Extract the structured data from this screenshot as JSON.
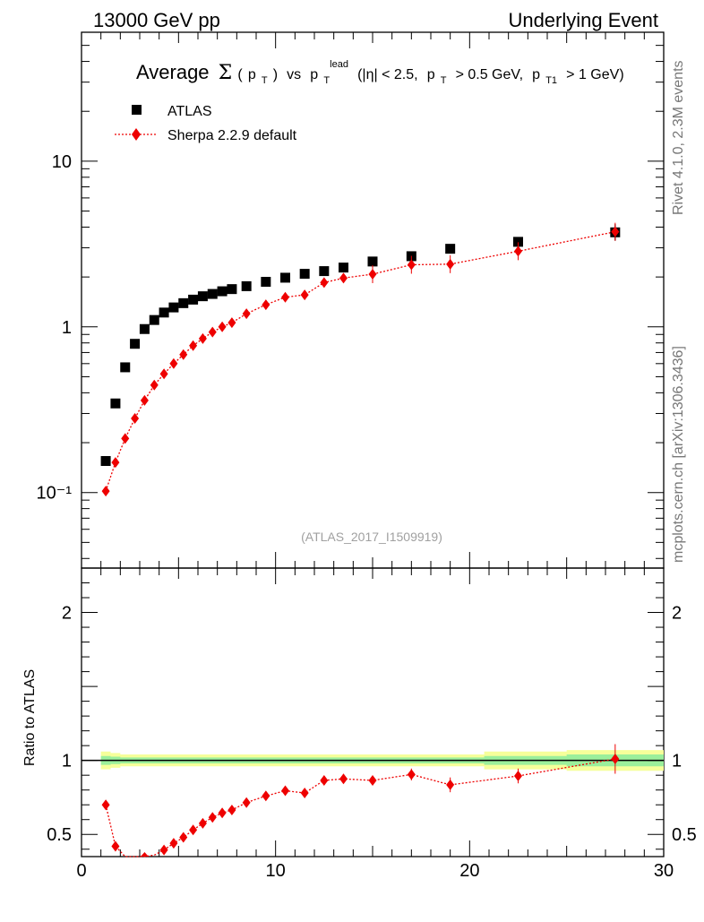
{
  "header": {
    "left": "13000 GeV pp",
    "right": "Underlying Event"
  },
  "side_labels": {
    "rivet": "Rivet 4.1.0,  2.3M events",
    "url": "mcplots.cern.ch [arXiv:1306.3436]"
  },
  "chart_data": {
    "type": "scatter",
    "title": "Average Σ(pT) vs pT^lead (|η| < 2.5, pT > 0.5 GeV, pT1 > 1 GeV)",
    "title_parts": {
      "average": "Average",
      "sigma": "Σ",
      "p": "p",
      "t": "T",
      "vs": "vs",
      "lead": "lead",
      "eta_range": "(|η| < 2.5,",
      "pt_cut": "> 0.5 GeV,",
      "t1": "T1",
      "pt1_cut": "> 1 GeV)",
      "open": "(",
      "close": ")"
    },
    "analysis_id": "(ATLAS_2017_I1509919)",
    "xlabel": "",
    "ylabel": "",
    "ratio_ylabel": "Ratio to ATLAS",
    "xlim": [
      0,
      30
    ],
    "ylim": [
      0.035,
      60
    ],
    "yscale": "log",
    "ratio_ylim": [
      0.35,
      2.3
    ],
    "x_ticks": [
      "0",
      "10",
      "20",
      "30"
    ],
    "x_tick_values": [
      0,
      10,
      20,
      30
    ],
    "y_ticks_main": [
      "10⁻¹",
      "1",
      "10"
    ],
    "y_tick_values_main": [
      0.1,
      1,
      10
    ],
    "y_ticks_ratio": [
      "0.5",
      "1",
      "2"
    ],
    "y_tick_values_ratio": [
      0.5,
      1,
      2
    ],
    "x": [
      1.25,
      1.75,
      2.25,
      2.75,
      3.25,
      3.75,
      4.25,
      4.75,
      5.25,
      5.75,
      6.25,
      6.75,
      7.25,
      7.75,
      8.5,
      9.5,
      10.5,
      11.5,
      12.5,
      13.5,
      15.0,
      17.0,
      19.0,
      22.5,
      27.5
    ],
    "series": [
      {
        "name": "ATLAS",
        "color": "#000000",
        "marker": "square",
        "values": [
          0.155,
          0.345,
          0.57,
          0.79,
          0.97,
          1.1,
          1.22,
          1.31,
          1.39,
          1.46,
          1.53,
          1.58,
          1.64,
          1.69,
          1.76,
          1.87,
          1.98,
          2.09,
          2.17,
          2.28,
          2.48,
          2.67,
          2.96,
          3.26,
          3.72
        ]
      },
      {
        "name": "Sherpa 2.2.9 default",
        "color": "#ee0000",
        "marker": "diamond",
        "line": "dotted",
        "values": [
          0.102,
          0.152,
          0.212,
          0.28,
          0.36,
          0.445,
          0.52,
          0.6,
          0.68,
          0.77,
          0.85,
          0.93,
          1.0,
          1.06,
          1.2,
          1.36,
          1.51,
          1.56,
          1.85,
          1.97,
          2.08,
          2.37,
          2.39,
          2.86,
          3.75
        ]
      }
    ],
    "ratio": {
      "reference": 1,
      "values": [
        0.7,
        0.42,
        0.3,
        0.3,
        0.3,
        0.36,
        0.395,
        0.44,
        0.48,
        0.53,
        0.575,
        0.615,
        0.645,
        0.665,
        0.715,
        0.76,
        0.795,
        0.78,
        0.865,
        0.875,
        0.865,
        0.905,
        0.835,
        0.895,
        1.01
      ],
      "errors": [
        0.01,
        0.01,
        0.01,
        0.01,
        0.01,
        0.01,
        0.01,
        0.01,
        0.01,
        0.01,
        0.01,
        0.01,
        0.01,
        0.01,
        0.015,
        0.015,
        0.02,
        0.02,
        0.025,
        0.03,
        0.03,
        0.04,
        0.05,
        0.05,
        0.1
      ],
      "band_outer": [
        0.06,
        0.05,
        0.04,
        0.04,
        0.04,
        0.04,
        0.04,
        0.04,
        0.04,
        0.04,
        0.04,
        0.04,
        0.04,
        0.04,
        0.04,
        0.04,
        0.04,
        0.04,
        0.04,
        0.04,
        0.04,
        0.04,
        0.04,
        0.06,
        0.07
      ],
      "band_inner": [
        0.03,
        0.025,
        0.02,
        0.02,
        0.02,
        0.02,
        0.02,
        0.02,
        0.02,
        0.02,
        0.02,
        0.02,
        0.02,
        0.02,
        0.02,
        0.02,
        0.02,
        0.02,
        0.02,
        0.02,
        0.02,
        0.02,
        0.02,
        0.03,
        0.04
      ]
    },
    "legend_position": "top-left",
    "colors": {
      "band_outer": "#f6ff9a",
      "band_inner": "#9bef9b",
      "sherpa": "#ee0000",
      "atlas": "#000000"
    }
  }
}
